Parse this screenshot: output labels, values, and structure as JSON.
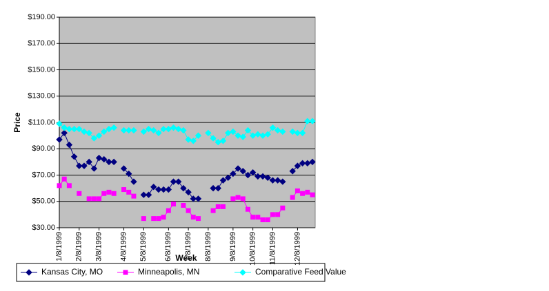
{
  "chart_data": {
    "type": "line",
    "x_label": "Week",
    "y_label": "Price",
    "categories": [
      "1/8/1999",
      null,
      null,
      null,
      "2/8/1999",
      null,
      null,
      null,
      "3/8/1999",
      null,
      null,
      null,
      null,
      "4/8/1999",
      null,
      null,
      null,
      "5/8/1999",
      null,
      null,
      null,
      null,
      "6/8/1999",
      null,
      null,
      null,
      "7/8/1999",
      null,
      null,
      null,
      "8/8/1999",
      null,
      null,
      null,
      null,
      "9/8/1999",
      null,
      null,
      null,
      "10/8/1999",
      null,
      null,
      null,
      "11/8/1999",
      null,
      null,
      null,
      null,
      "12/8/1999",
      null,
      null,
      null
    ],
    "series": [
      {
        "name": "Kansas City, MO",
        "color": "#000080",
        "marker": "diamond",
        "values": [
          97,
          102,
          93,
          84,
          77,
          77,
          80,
          75,
          83,
          82,
          80,
          80,
          null,
          75,
          71,
          65,
          null,
          55,
          55,
          61,
          59,
          59,
          59,
          65,
          65,
          60,
          57,
          52,
          52,
          null,
          null,
          60,
          60,
          66,
          68,
          71,
          75,
          73,
          70,
          72,
          69,
          69,
          68,
          66,
          66,
          65,
          null,
          73,
          77,
          79,
          79,
          80
        ]
      },
      {
        "name": "Minneapolis, MN",
        "color": "#ff00ff",
        "marker": "square",
        "values": [
          62,
          67,
          62,
          null,
          56,
          null,
          52,
          52,
          52,
          56,
          57,
          56,
          null,
          59,
          57,
          54,
          null,
          37,
          null,
          37,
          37,
          38,
          43,
          48,
          null,
          47,
          43,
          38,
          37,
          null,
          null,
          43,
          46,
          46,
          null,
          52,
          53,
          52,
          44,
          38,
          38,
          36,
          36,
          40,
          40,
          45,
          null,
          53,
          58,
          56,
          57,
          55
        ]
      },
      {
        "name": "Comparative Feed Value",
        "color": "#00ffff",
        "marker": "diamond",
        "values": [
          109,
          106,
          105,
          105,
          105,
          103,
          102,
          98,
          100,
          103,
          105,
          106,
          null,
          104,
          104,
          104,
          null,
          103,
          105,
          104,
          102,
          105,
          105,
          106,
          105,
          104,
          97,
          96,
          100,
          null,
          102,
          98,
          95,
          96,
          102,
          103,
          100,
          99,
          104,
          100,
          101,
          100,
          101,
          106,
          104,
          103,
          null,
          103,
          102,
          102,
          111,
          111
        ]
      }
    ],
    "ylim": [
      30,
      190
    ],
    "yticks": [
      {
        "value": 30,
        "label": "$30.00"
      },
      {
        "value": 50,
        "label": "$50.00"
      },
      {
        "value": 70,
        "label": "$70.00"
      },
      {
        "value": 90,
        "label": "$90.00"
      },
      {
        "value": 110,
        "label": "$110.00"
      },
      {
        "value": 130,
        "label": "$130.00"
      },
      {
        "value": 150,
        "label": "$150.00"
      },
      {
        "value": 170,
        "label": "$170.00"
      },
      {
        "value": 190,
        "label": "$190.00"
      }
    ],
    "grid": true,
    "plot_background": "#c0c0c0",
    "legend_position": "bottom"
  }
}
